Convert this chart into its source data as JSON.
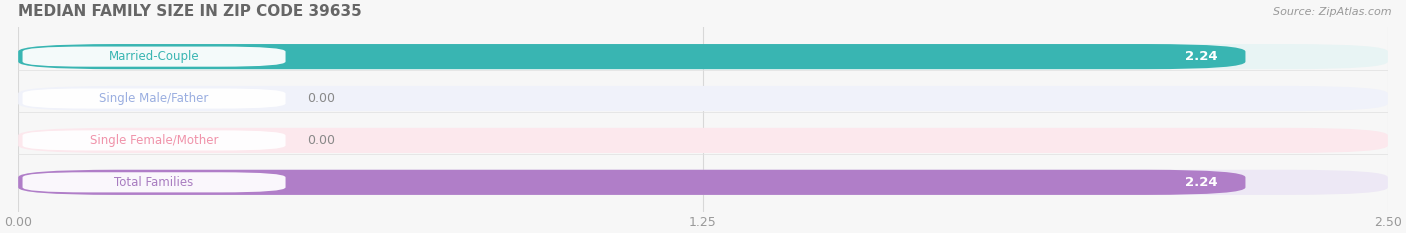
{
  "title": "MEDIAN FAMILY SIZE IN ZIP CODE 39635",
  "source": "Source: ZipAtlas.com",
  "categories": [
    "Married-Couple",
    "Single Male/Father",
    "Single Female/Mother",
    "Total Families"
  ],
  "values": [
    2.24,
    0.0,
    0.0,
    2.24
  ],
  "bar_colors": [
    "#39b5b2",
    "#a8b8e8",
    "#f4a0b4",
    "#b07ec8"
  ],
  "bar_bg_colors": [
    "#e8f4f4",
    "#f0f2fa",
    "#fce8ed",
    "#ede8f5"
  ],
  "label_colors": [
    "#39b5b2",
    "#9aaee0",
    "#f093aa",
    "#a87cc0"
  ],
  "xlim": [
    0.0,
    2.5
  ],
  "xticks": [
    0.0,
    1.25,
    2.5
  ],
  "value_label_color": "#888888",
  "title_color": "#666666",
  "source_color": "#999999",
  "bg_color": "#f7f7f7",
  "bar_height": 0.6,
  "bar_gap": 0.4,
  "figsize": [
    14.06,
    2.33
  ],
  "dpi": 100
}
